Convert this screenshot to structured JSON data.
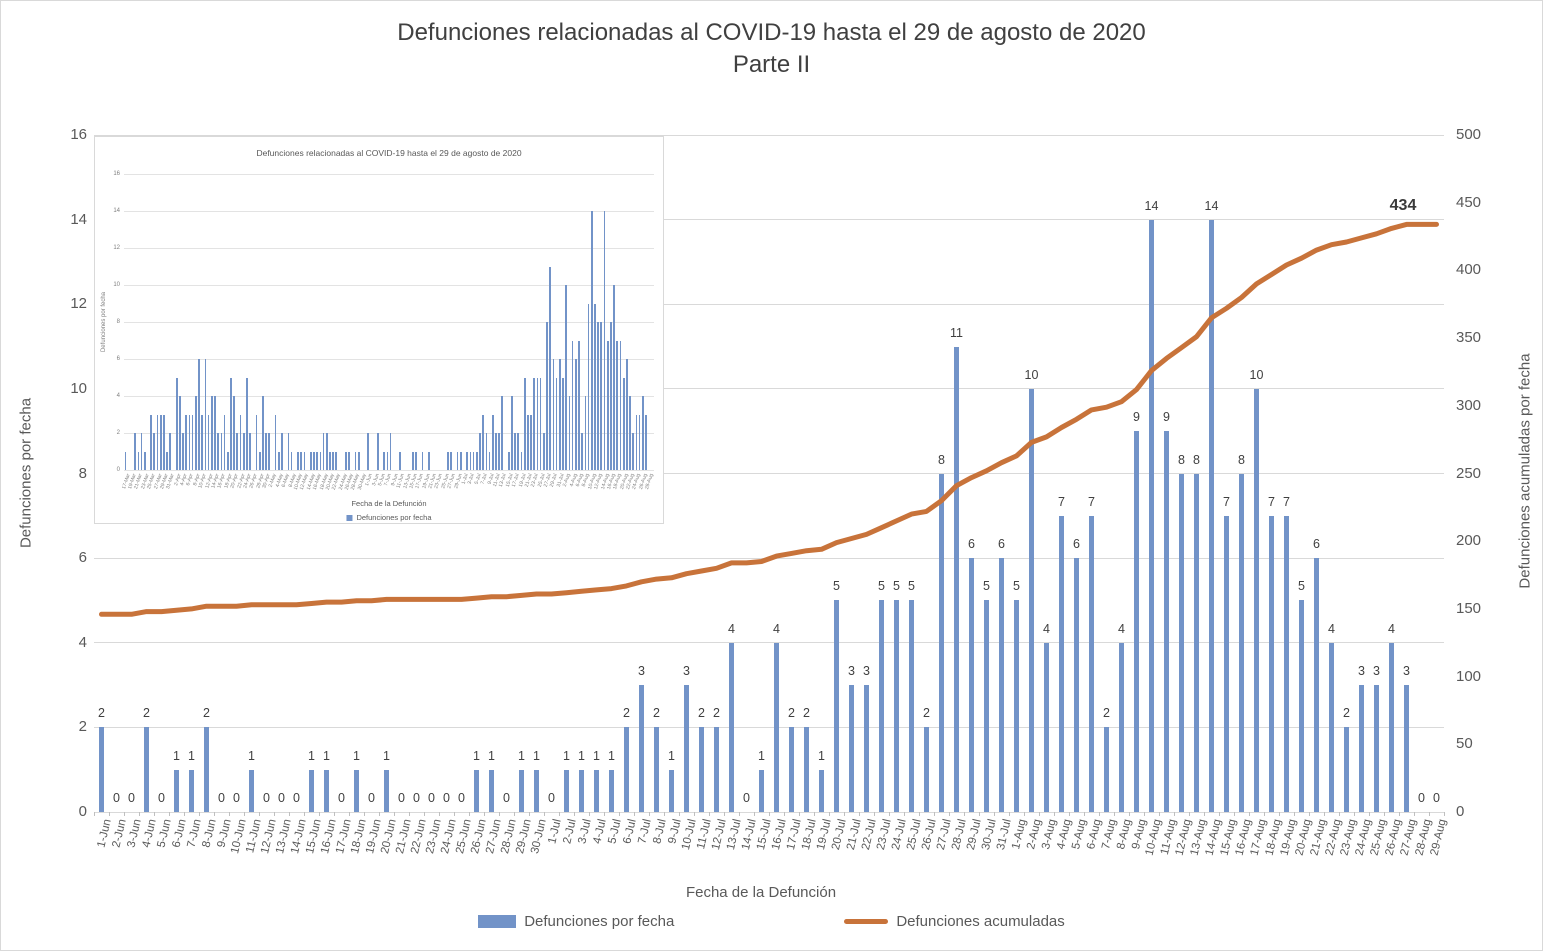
{
  "title": {
    "line1": "Defunciones relacionadas al COVID-19 hasta el 29 de agosto de 2020",
    "line2": "Parte II"
  },
  "chart_data": [
    {
      "id": "main",
      "type": "bar",
      "title": "Defunciones relacionadas al COVID-19 hasta el 29 de agosto de 2020",
      "subtitle": "Parte II",
      "xlabel": "Fecha de la Defunción",
      "ylabel_left": "Defunciones por fecha",
      "ylabel_right": "Defunciones acumuladas por fecha",
      "ylim_left": [
        0,
        16
      ],
      "yticks_left": [
        0,
        2,
        4,
        6,
        8,
        10,
        12,
        14,
        16
      ],
      "ylim_right": [
        0,
        500
      ],
      "yticks_right": [
        0,
        50,
        100,
        150,
        200,
        250,
        300,
        350,
        400,
        450,
        500
      ],
      "grid": true,
      "legend_position": "bottom",
      "xtick_interval": 1,
      "end_label": "434",
      "categories": [
        "1-Jun",
        "2-Jun",
        "3-Jun",
        "4-Jun",
        "5-Jun",
        "6-Jun",
        "7-Jun",
        "8-Jun",
        "9-Jun",
        "10-Jun",
        "11-Jun",
        "12-Jun",
        "13-Jun",
        "14-Jun",
        "15-Jun",
        "16-Jun",
        "17-Jun",
        "18-Jun",
        "19-Jun",
        "20-Jun",
        "21-Jun",
        "22-Jun",
        "23-Jun",
        "24-Jun",
        "25-Jun",
        "26-Jun",
        "27-Jun",
        "28-Jun",
        "29-Jun",
        "30-Jun",
        "1-Jul",
        "2-Jul",
        "3-Jul",
        "4-Jul",
        "5-Jul",
        "6-Jul",
        "7-Jul",
        "8-Jul",
        "9-Jul",
        "10-Jul",
        "11-Jul",
        "12-Jul",
        "13-Jul",
        "14-Jul",
        "15-Jul",
        "16-Jul",
        "17-Jul",
        "18-Jul",
        "19-Jul",
        "20-Jul",
        "21-Jul",
        "22-Jul",
        "23-Jul",
        "24-Jul",
        "25-Jul",
        "26-Jul",
        "27-Jul",
        "28-Jul",
        "29-Jul",
        "30-Jul",
        "31-Jul",
        "1-Aug",
        "2-Aug",
        "3-Aug",
        "4-Aug",
        "5-Aug",
        "6-Aug",
        "7-Aug",
        "8-Aug",
        "9-Aug",
        "10-Aug",
        "11-Aug",
        "12-Aug",
        "13-Aug",
        "14-Aug",
        "15-Aug",
        "16-Aug",
        "17-Aug",
        "18-Aug",
        "19-Aug",
        "20-Aug",
        "21-Aug",
        "22-Aug",
        "23-Aug",
        "24-Aug",
        "25-Aug",
        "26-Aug",
        "27-Aug",
        "28-Aug",
        "29-Aug"
      ],
      "series": [
        {
          "name": "Defunciones por fecha",
          "type": "bar",
          "color": "#7293C8",
          "axis": "left",
          "values": [
            2,
            0,
            0,
            2,
            0,
            1,
            1,
            2,
            0,
            0,
            1,
            0,
            0,
            0,
            1,
            1,
            0,
            1,
            0,
            1,
            0,
            0,
            0,
            0,
            0,
            1,
            1,
            0,
            1,
            1,
            0,
            1,
            1,
            1,
            1,
            2,
            3,
            2,
            1,
            3,
            2,
            2,
            4,
            0,
            1,
            4,
            2,
            2,
            1,
            5,
            3,
            3,
            5,
            5,
            5,
            2,
            8,
            11,
            6,
            5,
            6,
            5,
            10,
            4,
            7,
            6,
            7,
            2,
            4,
            9,
            14,
            9,
            8,
            8,
            14,
            7,
            8,
            10,
            7,
            7,
            5,
            6,
            4,
            2,
            3,
            3,
            4,
            3,
            0,
            0
          ]
        },
        {
          "name": "Defunciones acumuladas",
          "type": "line",
          "color": "#C8733A",
          "axis": "right",
          "values": [
            146,
            146,
            146,
            148,
            148,
            149,
            150,
            152,
            152,
            152,
            153,
            153,
            153,
            153,
            154,
            155,
            155,
            156,
            156,
            157,
            157,
            157,
            157,
            157,
            157,
            158,
            159,
            159,
            160,
            161,
            161,
            162,
            163,
            164,
            165,
            167,
            170,
            172,
            173,
            176,
            178,
            180,
            184,
            184,
            185,
            189,
            191,
            193,
            194,
            199,
            202,
            205,
            210,
            215,
            220,
            222,
            230,
            241,
            247,
            252,
            258,
            263,
            273,
            277,
            284,
            290,
            297,
            299,
            303,
            312,
            326,
            335,
            343,
            351,
            365,
            372,
            380,
            390,
            397,
            404,
            409,
            415,
            419,
            421,
            424,
            427,
            431,
            434,
            434,
            434
          ]
        }
      ]
    },
    {
      "id": "inset",
      "type": "bar",
      "title": "Defunciones relacionadas al COVID-19 hasta el 29 de agosto de 2020",
      "xlabel": "Fecha de la Defunción",
      "ylabel": "Defunciones por fecha",
      "ylim": [
        0,
        16
      ],
      "yticks": [
        0,
        2,
        4,
        6,
        8,
        10,
        12,
        14,
        16
      ],
      "grid": true,
      "legend_position": "bottom",
      "xtick_interval": 2,
      "categories": [
        "17-Mar",
        "18-Mar",
        "19-Mar",
        "20-Mar",
        "21-Mar",
        "22-Mar",
        "23-Mar",
        "24-Mar",
        "25-Mar",
        "26-Mar",
        "27-Mar",
        "28-Mar",
        "29-Mar",
        "30-Mar",
        "31-Mar",
        "1-Apr",
        "2-Apr",
        "3-Apr",
        "4-Apr",
        "5-Apr",
        "6-Apr",
        "7-Apr",
        "8-Apr",
        "9-Apr",
        "10-Apr",
        "11-Apr",
        "12-Apr",
        "13-Apr",
        "14-Apr",
        "15-Apr",
        "16-Apr",
        "17-Apr",
        "18-Apr",
        "19-Apr",
        "20-Apr",
        "21-Apr",
        "22-Apr",
        "23-Apr",
        "24-Apr",
        "25-Apr",
        "26-Apr",
        "27-Apr",
        "28-Apr",
        "29-Apr",
        "30-Apr",
        "1-May",
        "2-May",
        "3-May",
        "4-May",
        "5-May",
        "6-May",
        "7-May",
        "8-May",
        "9-May",
        "10-May",
        "11-May",
        "12-May",
        "13-May",
        "14-May",
        "15-May",
        "16-May",
        "17-May",
        "18-May",
        "19-May",
        "20-May",
        "21-May",
        "22-May",
        "23-May",
        "24-May",
        "25-May",
        "26-May",
        "27-May",
        "28-May",
        "29-May",
        "30-May",
        "31-May",
        "1-Jun",
        "2-Jun",
        "3-Jun",
        "4-Jun",
        "5-Jun",
        "6-Jun",
        "7-Jun",
        "8-Jun",
        "9-Jun",
        "10-Jun",
        "11-Jun",
        "12-Jun",
        "13-Jun",
        "14-Jun",
        "15-Jun",
        "16-Jun",
        "17-Jun",
        "18-Jun",
        "19-Jun",
        "20-Jun",
        "21-Jun",
        "22-Jun",
        "23-Jun",
        "24-Jun",
        "25-Jun",
        "26-Jun",
        "27-Jun",
        "28-Jun",
        "29-Jun",
        "30-Jun",
        "1-Jul",
        "2-Jul",
        "3-Jul",
        "4-Jul",
        "5-Jul",
        "6-Jul",
        "7-Jul",
        "8-Jul",
        "9-Jul",
        "10-Jul",
        "11-Jul",
        "12-Jul",
        "13-Jul",
        "14-Jul",
        "15-Jul",
        "16-Jul",
        "17-Jul",
        "18-Jul",
        "19-Jul",
        "20-Jul",
        "21-Jul",
        "22-Jul",
        "23-Jul",
        "24-Jul",
        "25-Jul",
        "26-Jul",
        "27-Jul",
        "28-Jul",
        "29-Jul",
        "30-Jul",
        "31-Jul",
        "1-Aug",
        "2-Aug",
        "3-Aug",
        "4-Aug",
        "5-Aug",
        "6-Aug",
        "7-Aug",
        "8-Aug",
        "9-Aug",
        "10-Aug",
        "11-Aug",
        "12-Aug",
        "13-Aug",
        "14-Aug",
        "15-Aug",
        "16-Aug",
        "17-Aug",
        "18-Aug",
        "19-Aug",
        "20-Aug",
        "21-Aug",
        "22-Aug",
        "23-Aug",
        "24-Aug",
        "25-Aug",
        "26-Aug",
        "27-Aug",
        "28-Aug",
        "29-Aug"
      ],
      "series": [
        {
          "name": "Defunciones por fecha",
          "type": "bar",
          "color": "#7293C8",
          "axis": "left",
          "values": [
            1,
            0,
            0,
            2,
            1,
            2,
            1,
            0,
            3,
            2,
            3,
            3,
            3,
            1,
            2,
            0,
            5,
            4,
            2,
            3,
            3,
            3,
            4,
            6,
            3,
            6,
            3,
            4,
            4,
            2,
            2,
            3,
            1,
            5,
            4,
            2,
            3,
            2,
            5,
            2,
            0,
            3,
            1,
            4,
            2,
            2,
            0,
            3,
            1,
            2,
            0,
            2,
            1,
            0,
            1,
            1,
            1,
            0,
            1,
            1,
            1,
            1,
            2,
            2,
            1,
            1,
            1,
            0,
            0,
            1,
            1,
            0,
            1,
            1,
            0,
            0,
            2,
            0,
            0,
            2,
            0,
            1,
            1,
            2,
            0,
            0,
            1,
            0,
            0,
            0,
            1,
            1,
            0,
            1,
            0,
            1,
            0,
            0,
            0,
            0,
            0,
            1,
            1,
            0,
            1,
            1,
            0,
            1,
            1,
            1,
            1,
            2,
            3,
            2,
            1,
            3,
            2,
            2,
            4,
            0,
            1,
            4,
            2,
            2,
            1,
            5,
            3,
            3,
            5,
            5,
            5,
            2,
            8,
            11,
            6,
            5,
            6,
            5,
            10,
            4,
            7,
            6,
            7,
            2,
            4,
            9,
            14,
            9,
            8,
            8,
            14,
            7,
            8,
            10,
            7,
            7,
            5,
            6,
            4,
            2,
            3,
            3,
            4,
            3,
            0,
            0
          ]
        }
      ]
    }
  ]
}
